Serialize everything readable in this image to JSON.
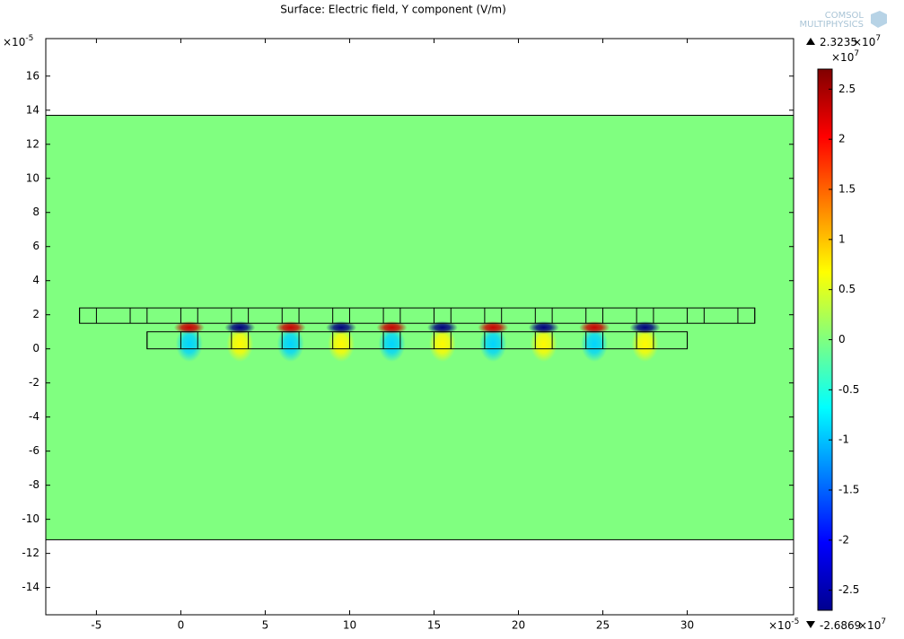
{
  "chart_data": {
    "type": "surface",
    "title": "Surface: Electric field, Y component (V/m)",
    "logo": [
      "COMSOL",
      "MULTIPHYSICS"
    ],
    "xlim": [
      -8,
      36.3
    ],
    "ylim": [
      -15.6,
      18.2
    ],
    "xticks": [
      -5,
      0,
      5,
      10,
      15,
      20,
      25,
      30
    ],
    "yticks": [
      -14,
      -12,
      -10,
      -8,
      -6,
      -4,
      -2,
      0,
      2,
      4,
      6,
      8,
      10,
      12,
      14,
      16
    ],
    "x_multiplier": {
      "base": "×10",
      "exp": "-5"
    },
    "y_multiplier": {
      "base": "×10",
      "exp": "-5"
    },
    "domain_ylim": [
      -11.2,
      13.7
    ],
    "background_value": 0,
    "top_row": {
      "ylim": [
        1.5,
        2.4
      ],
      "edges": [
        -6,
        -5,
        -3,
        -2,
        0,
        1,
        3,
        4,
        6,
        7,
        9,
        10,
        12,
        13,
        15,
        16,
        18,
        19,
        21,
        22,
        24,
        25,
        27,
        28,
        30,
        31,
        33,
        34
      ]
    },
    "bottom_row": {
      "ylim": [
        0,
        1
      ],
      "edges": [
        -2,
        0,
        1,
        3,
        4,
        6,
        7,
        9,
        10,
        12,
        13,
        15,
        16,
        18,
        19,
        21,
        22,
        24,
        25,
        27,
        28,
        30
      ]
    },
    "spots": {
      "x": [
        0.5,
        3.5,
        6.5,
        9.5,
        12.5,
        15.5,
        18.5,
        21.5,
        24.5,
        27.5
      ],
      "y": 1.25,
      "lower_y": 0.5,
      "values": [
        2.3,
        -2.7,
        2.3,
        -2.7,
        2.3,
        -2.7,
        2.3,
        -2.7,
        2.3,
        -2.7
      ],
      "lower_values": [
        -0.9,
        0.7,
        -0.9,
        0.7,
        -0.9,
        0.7,
        -0.9,
        0.7,
        -0.9,
        0.7
      ]
    },
    "colorbar": {
      "clim": [
        -2.7,
        2.7
      ],
      "ticks": [
        -2.5,
        -2,
        -1.5,
        -1,
        -0.5,
        0,
        0.5,
        1,
        1.5,
        2,
        2.5
      ],
      "multiplier": {
        "base": "×10",
        "exp": "7"
      },
      "max": 2.3235,
      "min": -2.6869,
      "max_multiplier": {
        "base": "×10",
        "exp": "7"
      },
      "min_multiplier": {
        "base": "×10",
        "exp": "7"
      }
    }
  }
}
